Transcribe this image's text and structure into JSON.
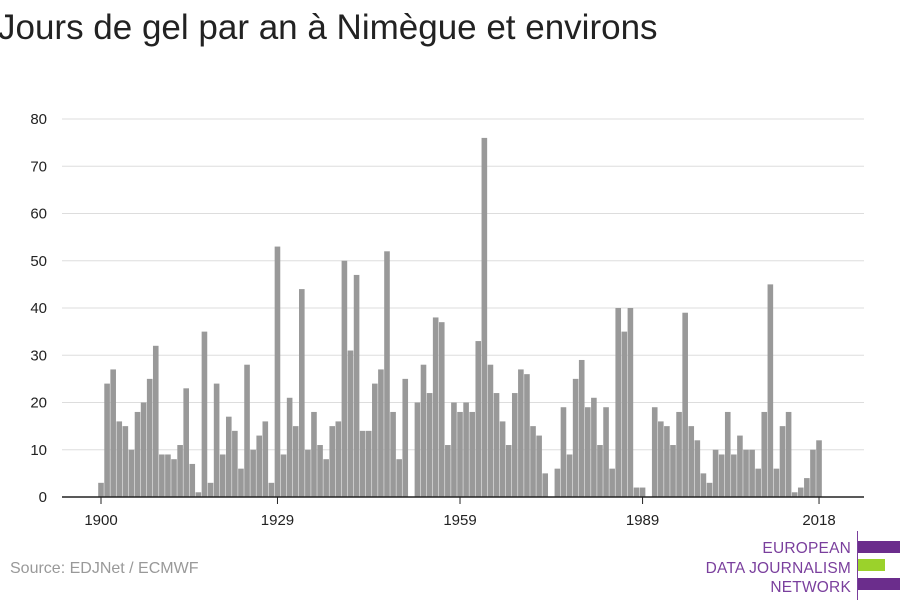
{
  "title": "Jours de gel par an à Nimègue et environs",
  "source": "Source: EDJNet / ECMWF",
  "logo": {
    "line1": "EUROPEAN",
    "line2": "DATA JOURNALISM",
    "line3": "NETWORK"
  },
  "colors": {
    "bar": "#999999",
    "grid": "#dddddd",
    "axis": "#222222",
    "logo_purple": "#6b2d8c",
    "logo_green": "#9bd22b"
  },
  "chart_data": {
    "type": "bar",
    "title": "Jours de gel par an à Nimègue et environs",
    "xlabel": "",
    "ylabel": "",
    "ylim": [
      0,
      80
    ],
    "yticks": [
      0,
      10,
      20,
      30,
      40,
      50,
      60,
      70,
      80
    ],
    "xticks": [
      1900,
      1929,
      1959,
      1989,
      2018
    ],
    "grid": true,
    "categories": [
      1900,
      1901,
      1902,
      1903,
      1904,
      1905,
      1906,
      1907,
      1908,
      1909,
      1910,
      1911,
      1912,
      1913,
      1914,
      1915,
      1916,
      1917,
      1918,
      1919,
      1920,
      1921,
      1922,
      1923,
      1924,
      1925,
      1926,
      1927,
      1928,
      1929,
      1930,
      1931,
      1932,
      1933,
      1934,
      1935,
      1936,
      1937,
      1938,
      1939,
      1940,
      1941,
      1942,
      1943,
      1944,
      1945,
      1946,
      1947,
      1948,
      1949,
      1950,
      1951,
      1952,
      1953,
      1954,
      1955,
      1956,
      1957,
      1958,
      1959,
      1960,
      1961,
      1962,
      1963,
      1964,
      1965,
      1966,
      1967,
      1968,
      1969,
      1970,
      1971,
      1972,
      1973,
      1974,
      1975,
      1976,
      1977,
      1978,
      1979,
      1980,
      1981,
      1982,
      1983,
      1984,
      1985,
      1986,
      1987,
      1988,
      1989,
      1990,
      1991,
      1992,
      1993,
      1994,
      1995,
      1996,
      1997,
      1998,
      1999,
      2000,
      2001,
      2002,
      2003,
      2004,
      2005,
      2006,
      2007,
      2008,
      2009,
      2010,
      2011,
      2012,
      2013,
      2014,
      2015,
      2016,
      2017,
      2018
    ],
    "values": [
      3,
      24,
      27,
      16,
      15,
      10,
      18,
      20,
      25,
      32,
      9,
      9,
      8,
      11,
      23,
      7,
      1,
      35,
      3,
      24,
      9,
      17,
      14,
      6,
      28,
      10,
      13,
      16,
      3,
      53,
      9,
      21,
      15,
      44,
      10,
      18,
      11,
      8,
      15,
      16,
      50,
      31,
      47,
      14,
      14,
      24,
      27,
      52,
      18,
      8,
      25,
      0,
      20,
      28,
      22,
      38,
      37,
      11,
      20,
      18,
      20,
      18,
      33,
      76,
      28,
      22,
      16,
      11,
      22,
      27,
      26,
      15,
      13,
      5,
      0,
      6,
      19,
      9,
      25,
      29,
      19,
      21,
      11,
      19,
      6,
      40,
      35,
      40,
      2,
      2,
      0,
      19,
      16,
      15,
      11,
      18,
      39,
      15,
      12,
      5,
      3,
      10,
      9,
      18,
      9,
      13,
      10,
      10,
      6,
      18,
      45,
      6,
      15,
      18,
      1,
      2,
      4,
      10,
      12
    ]
  }
}
